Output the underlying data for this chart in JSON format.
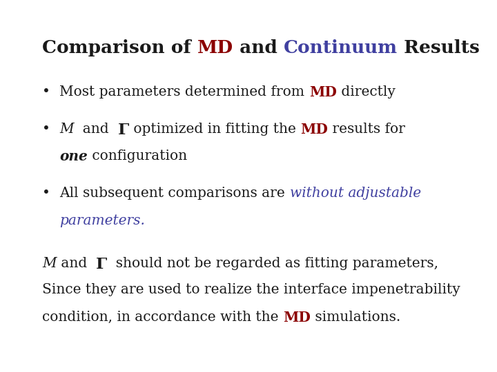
{
  "background_color": "#ffffff",
  "black": "#1a1a1a",
  "red": "#8B0000",
  "blue": "#4040a0",
  "title_fontsize": 19,
  "body_fontsize": 14.5,
  "font_family": "DejaVu Serif"
}
